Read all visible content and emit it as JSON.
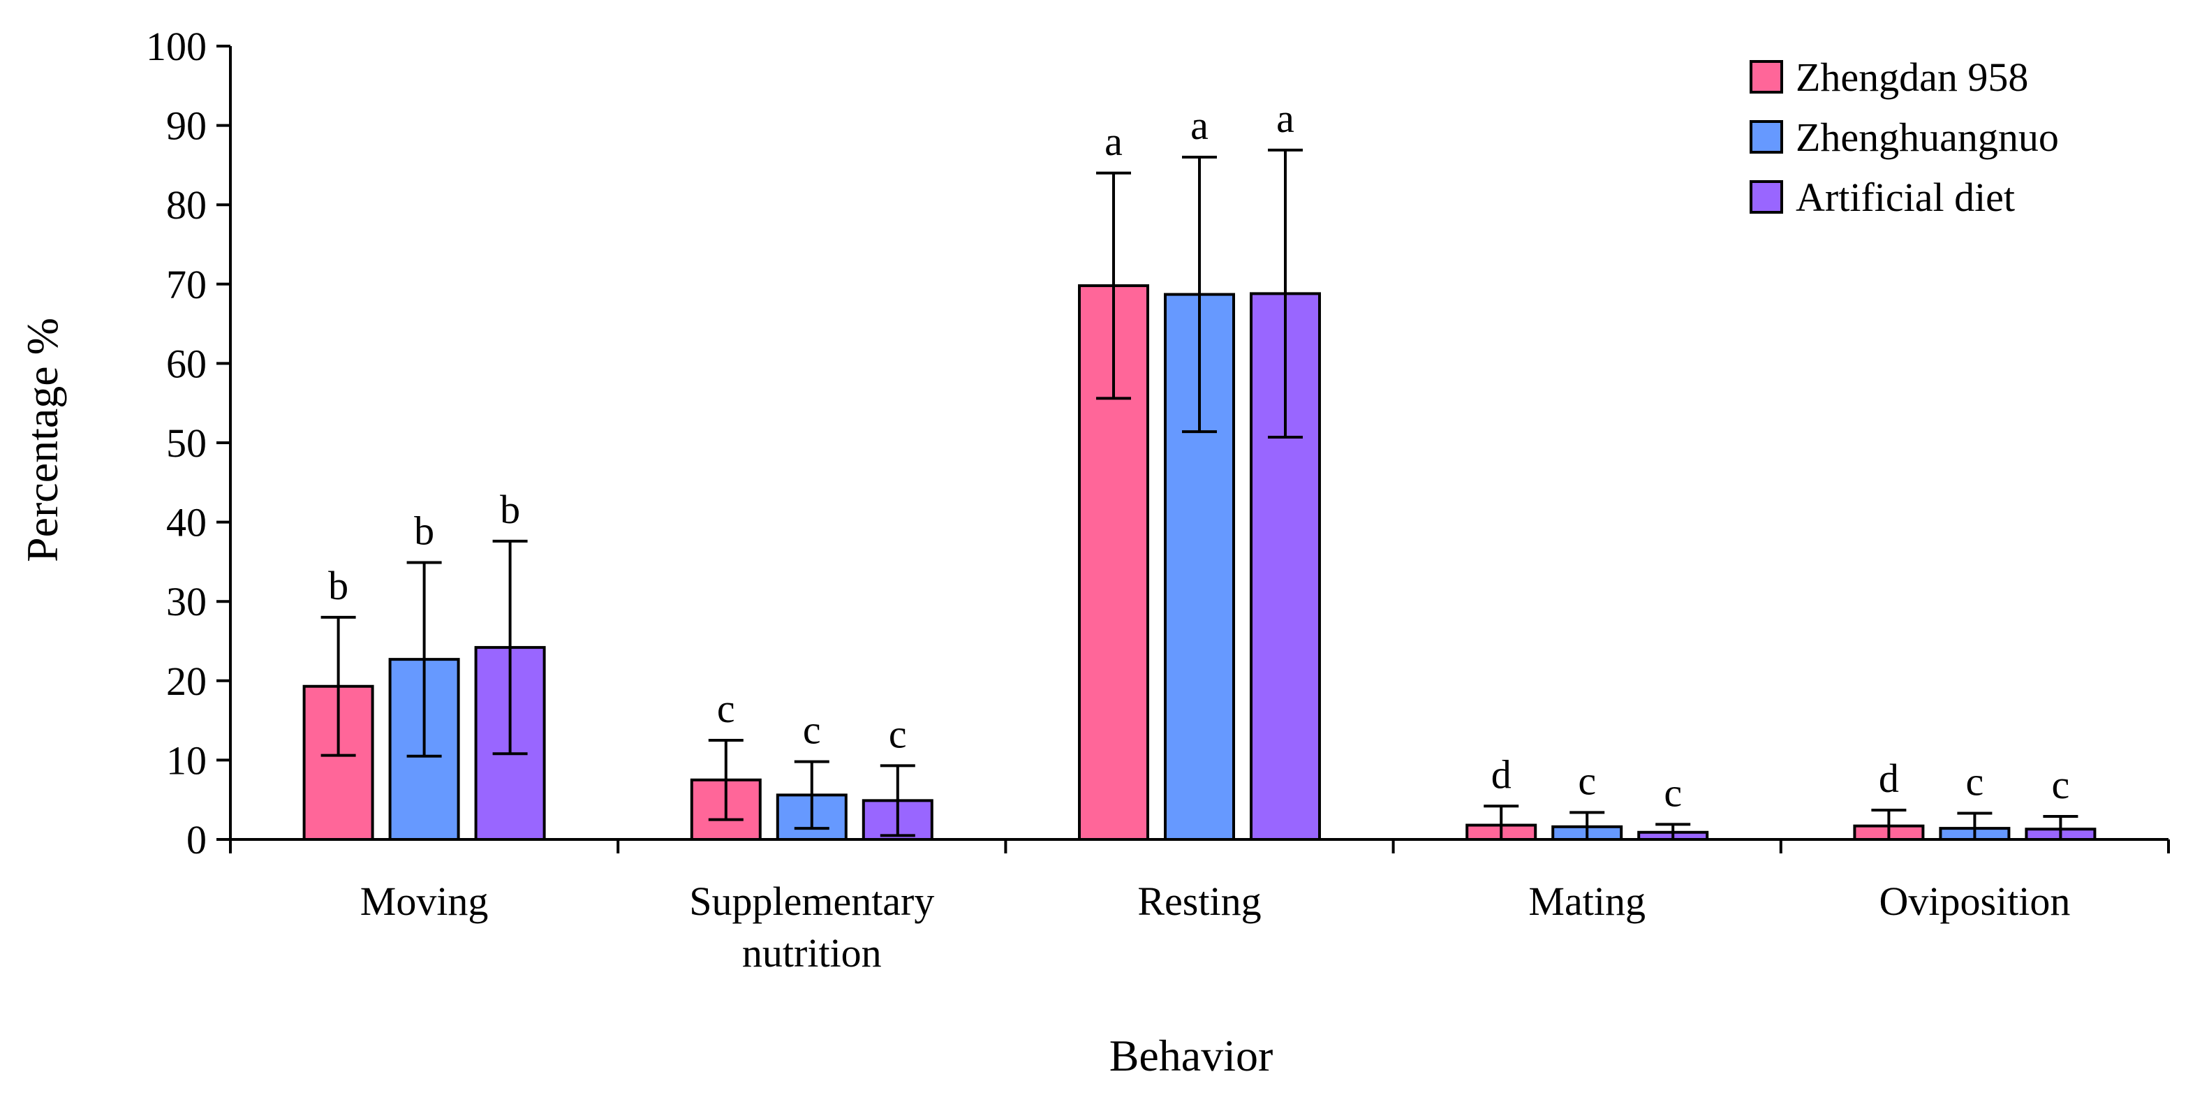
{
  "chart_data": {
    "type": "bar",
    "xlabel": "Behavior",
    "ylabel": "Percentage %",
    "ylim": [
      0,
      100
    ],
    "yticks": [
      "0",
      "10",
      "20",
      "30",
      "40",
      "50",
      "60",
      "70",
      "80",
      "90",
      "100"
    ],
    "categories": [
      [
        "Moving"
      ],
      [
        "Supplementary",
        "nutrition"
      ],
      [
        "Resting"
      ],
      [
        "Mating"
      ],
      [
        "Oviposition"
      ]
    ],
    "series": [
      {
        "name": "Zhengdan 958",
        "color": "#ff6699",
        "values": [
          19.3,
          7.5,
          69.8,
          1.8,
          1.7
        ],
        "error": [
          8.7,
          5.0,
          14.2,
          2.4,
          2.0
        ],
        "labels": [
          "b",
          "c",
          "a",
          "d",
          "d"
        ]
      },
      {
        "name": "Zhenghuangnuo",
        "color": "#6699ff",
        "values": [
          22.7,
          5.6,
          68.7,
          1.6,
          1.4
        ],
        "error": [
          12.2,
          4.2,
          17.3,
          1.8,
          1.9
        ],
        "labels": [
          "b",
          "c",
          "a",
          "c",
          "c"
        ]
      },
      {
        "name": "Artificial diet",
        "color": "#9966ff",
        "values": [
          24.2,
          4.9,
          68.8,
          0.9,
          1.3
        ],
        "error": [
          13.4,
          4.4,
          18.1,
          1.0,
          1.6
        ],
        "labels": [
          "b",
          "c",
          "a",
          "c",
          "c"
        ]
      }
    ],
    "legend_position": "top-right",
    "grid": false
  }
}
